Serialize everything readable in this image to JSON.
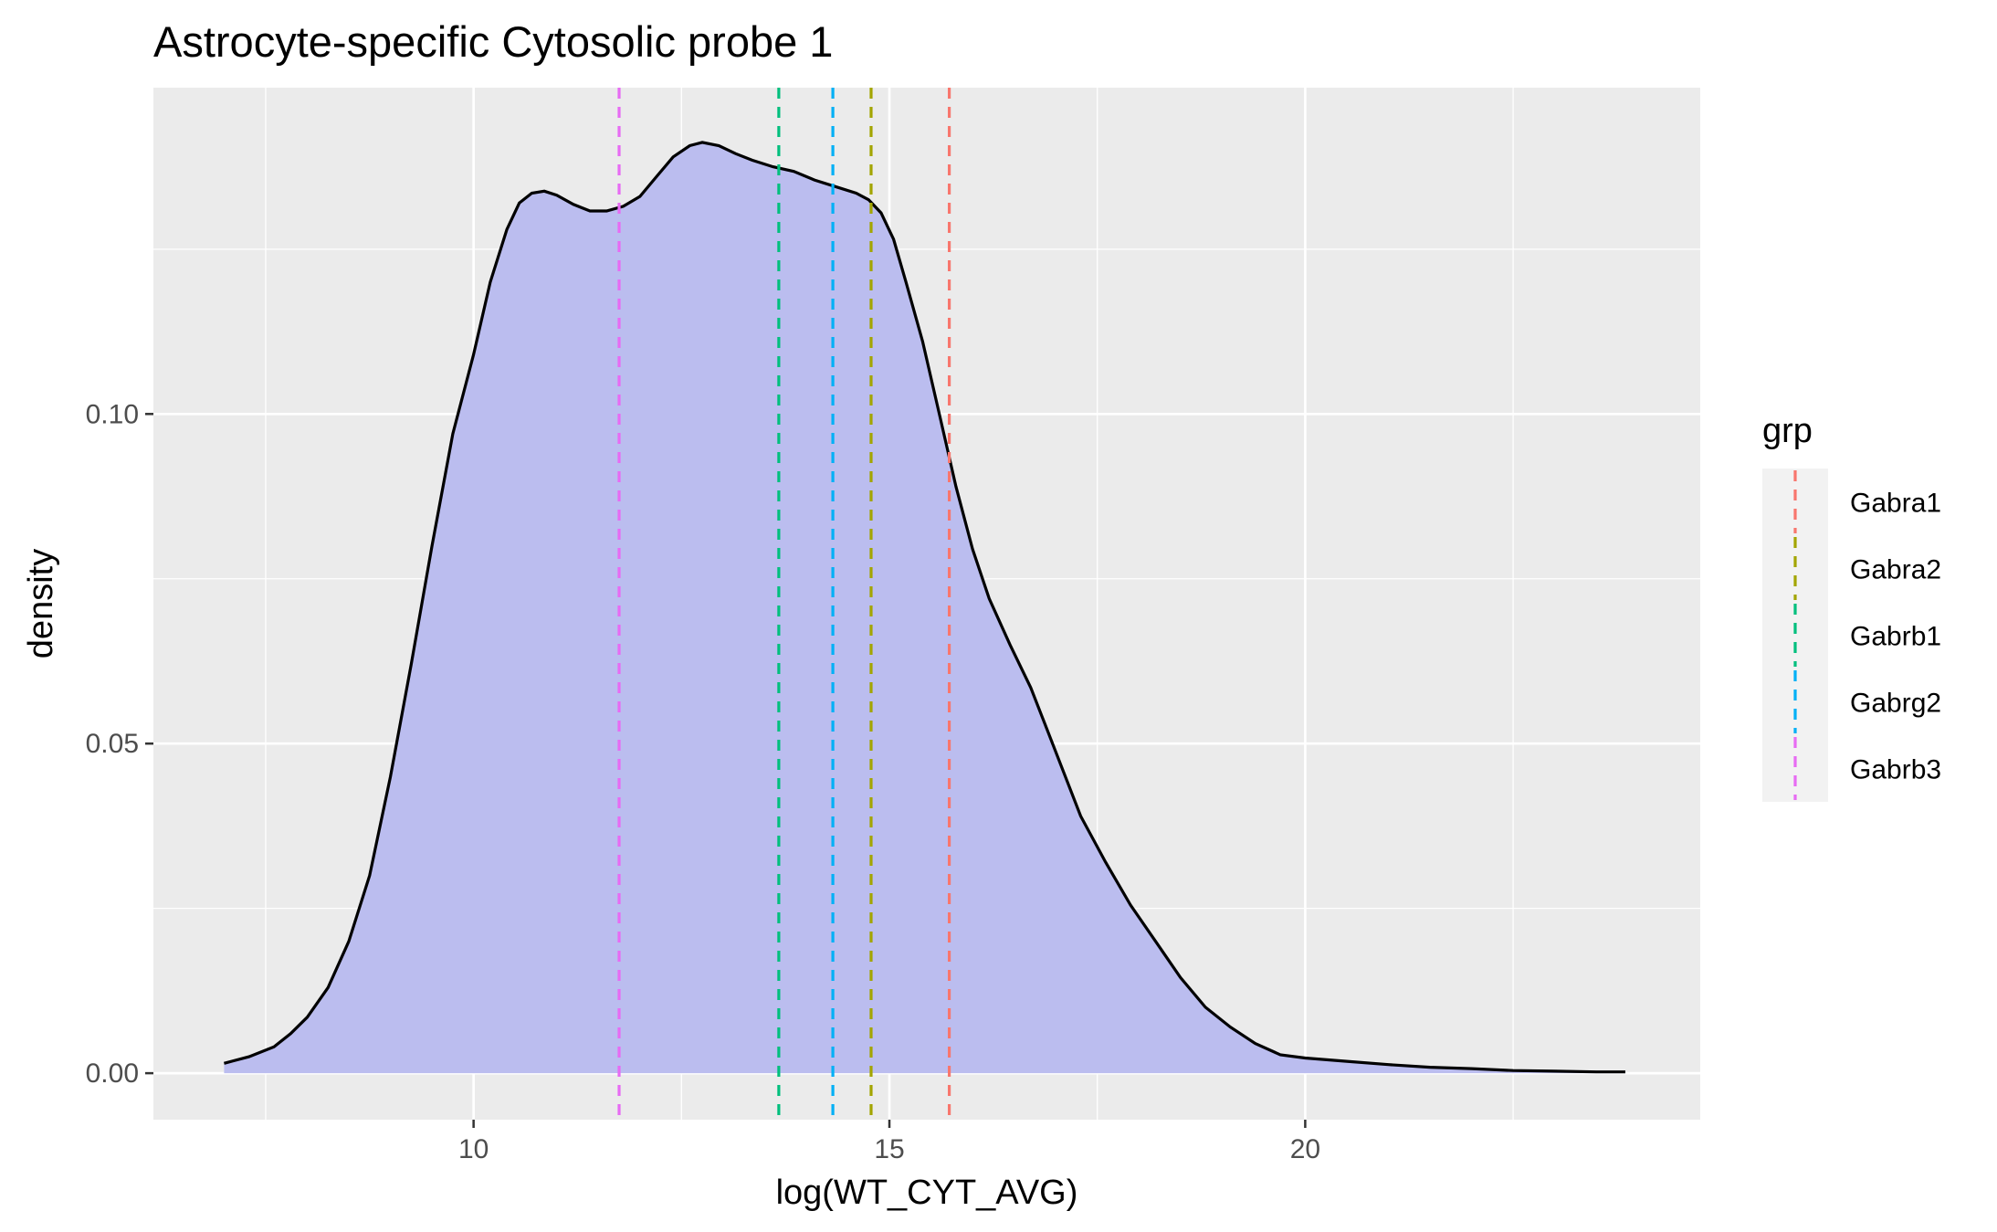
{
  "chart_data": {
    "type": "area",
    "title": "Astrocyte-specific Cytosolic probe 1",
    "xlabel": "log(WT_CYT_AVG)",
    "ylabel": "density",
    "xlim": [
      6.15,
      24.75
    ],
    "ylim": [
      -0.00705,
      0.1495
    ],
    "x_ticks": [
      10,
      15,
      20
    ],
    "x_tick_labels": [
      "10",
      "15",
      "20"
    ],
    "y_ticks": [
      0.0,
      0.05,
      0.1
    ],
    "y_tick_labels": [
      "0.00",
      "0.05",
      "0.10"
    ],
    "grid": true,
    "fill_color": "#bbbdef",
    "line_color": "#000000",
    "panel_background": "#ebebeb",
    "density": {
      "x": [
        7.0,
        7.3,
        7.6,
        7.8,
        8.0,
        8.25,
        8.5,
        8.75,
        9.0,
        9.25,
        9.5,
        9.75,
        10.0,
        10.2,
        10.4,
        10.55,
        10.7,
        10.85,
        11.0,
        11.2,
        11.4,
        11.6,
        11.8,
        12.0,
        12.2,
        12.4,
        12.6,
        12.75,
        12.95,
        13.15,
        13.35,
        13.6,
        13.85,
        14.1,
        14.35,
        14.6,
        14.75,
        14.9,
        15.05,
        15.2,
        15.4,
        15.6,
        15.8,
        16.0,
        16.2,
        16.45,
        16.7,
        16.9,
        17.1,
        17.3,
        17.6,
        17.9,
        18.2,
        18.5,
        18.8,
        19.1,
        19.4,
        19.7,
        20.0,
        20.5,
        21.0,
        21.5,
        22.0,
        22.5,
        23.0,
        23.5,
        23.85
      ],
      "y": [
        0.0015,
        0.0025,
        0.004,
        0.006,
        0.0085,
        0.013,
        0.02,
        0.03,
        0.045,
        0.062,
        0.08,
        0.097,
        0.109,
        0.12,
        0.128,
        0.132,
        0.1335,
        0.1338,
        0.1332,
        0.1318,
        0.1308,
        0.1308,
        0.1315,
        0.133,
        0.136,
        0.139,
        0.1407,
        0.1412,
        0.1407,
        0.1395,
        0.1385,
        0.1375,
        0.1368,
        0.1355,
        0.1345,
        0.1335,
        0.1325,
        0.1305,
        0.1265,
        0.12,
        0.111,
        0.1,
        0.089,
        0.0795,
        0.072,
        0.065,
        0.0585,
        0.052,
        0.0455,
        0.039,
        0.032,
        0.0255,
        0.02,
        0.0145,
        0.01,
        0.007,
        0.0045,
        0.0028,
        0.0023,
        0.0018,
        0.0013,
        0.0009,
        0.0007,
        0.0004,
        0.0003,
        0.0002,
        0.0002
      ]
    },
    "vlines": [
      {
        "name": "Gabra1",
        "x": 15.72,
        "color": "#f8766d"
      },
      {
        "name": "Gabra2",
        "x": 14.78,
        "color": "#a3a500"
      },
      {
        "name": "Gabrb1",
        "x": 13.67,
        "color": "#00bf7d"
      },
      {
        "name": "Gabrg2",
        "x": 14.32,
        "color": "#00b0f6"
      },
      {
        "name": "Gabrb3",
        "x": 11.75,
        "color": "#e76bf3"
      }
    ],
    "legend": {
      "title": "grp",
      "position": "right",
      "entries": [
        "Gabra1",
        "Gabra2",
        "Gabrb1",
        "Gabrg2",
        "Gabrb3"
      ]
    }
  }
}
